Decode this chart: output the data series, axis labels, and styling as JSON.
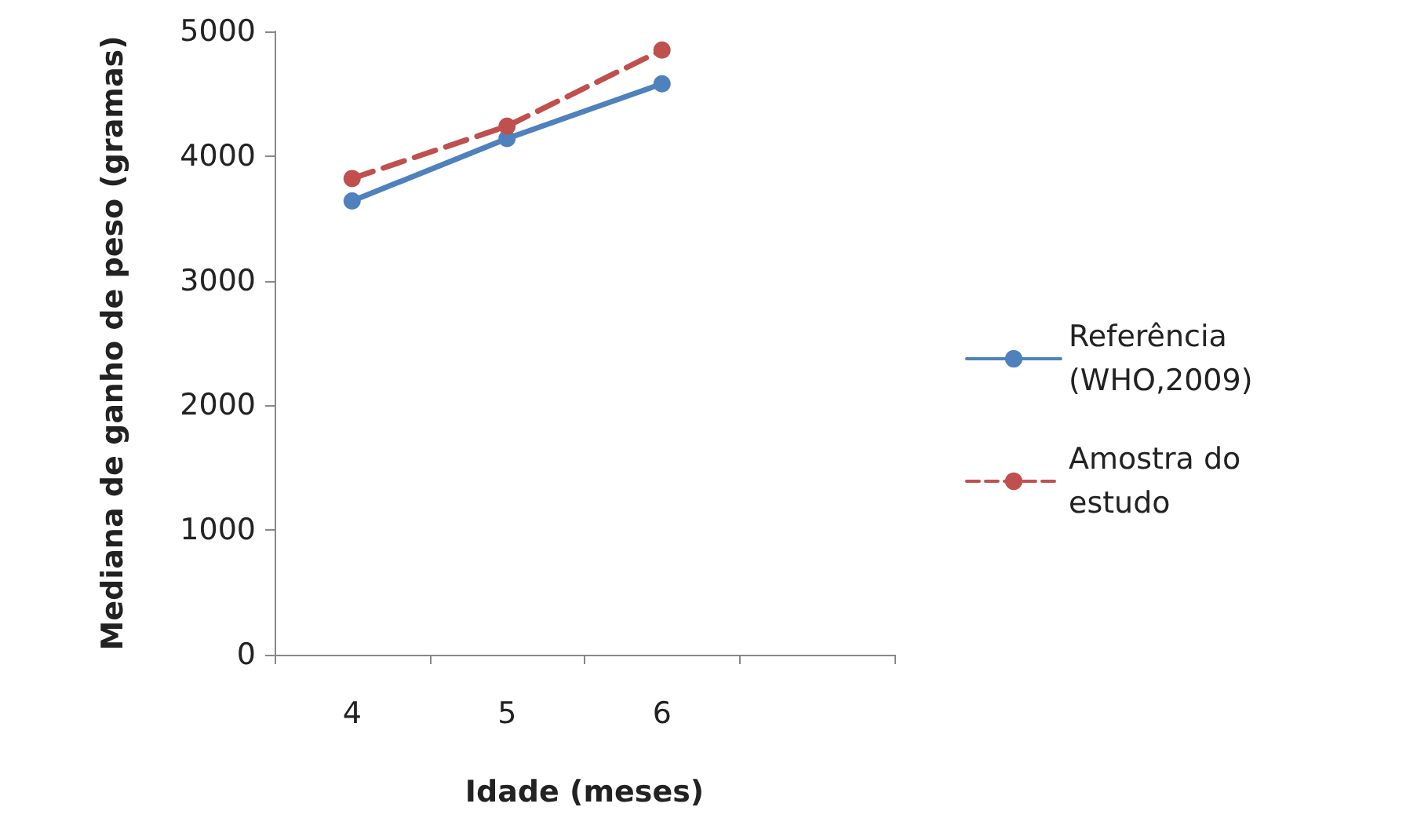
{
  "chart_data": {
    "type": "line",
    "xlabel": "Idade (meses)",
    "ylabel": "Mediana de ganho de peso (gramas)",
    "categories": [
      "4",
      "5",
      "6",
      null
    ],
    "series": [
      {
        "name": "Referência (WHO,2009)",
        "color": "#4f81bd",
        "values": [
          3640,
          4140,
          4580,
          null
        ],
        "line_style": "solid"
      },
      {
        "name": "Amostra do estudo",
        "color": "#c0504d",
        "values": [
          3820,
          4240,
          4850,
          null
        ],
        "line_style": "dashed"
      }
    ],
    "ylim": [
      0,
      5000
    ],
    "yticks": [
      0,
      1000,
      2000,
      3000,
      4000,
      5000
    ],
    "grid": false,
    "legend": "right",
    "marker": "circle"
  }
}
